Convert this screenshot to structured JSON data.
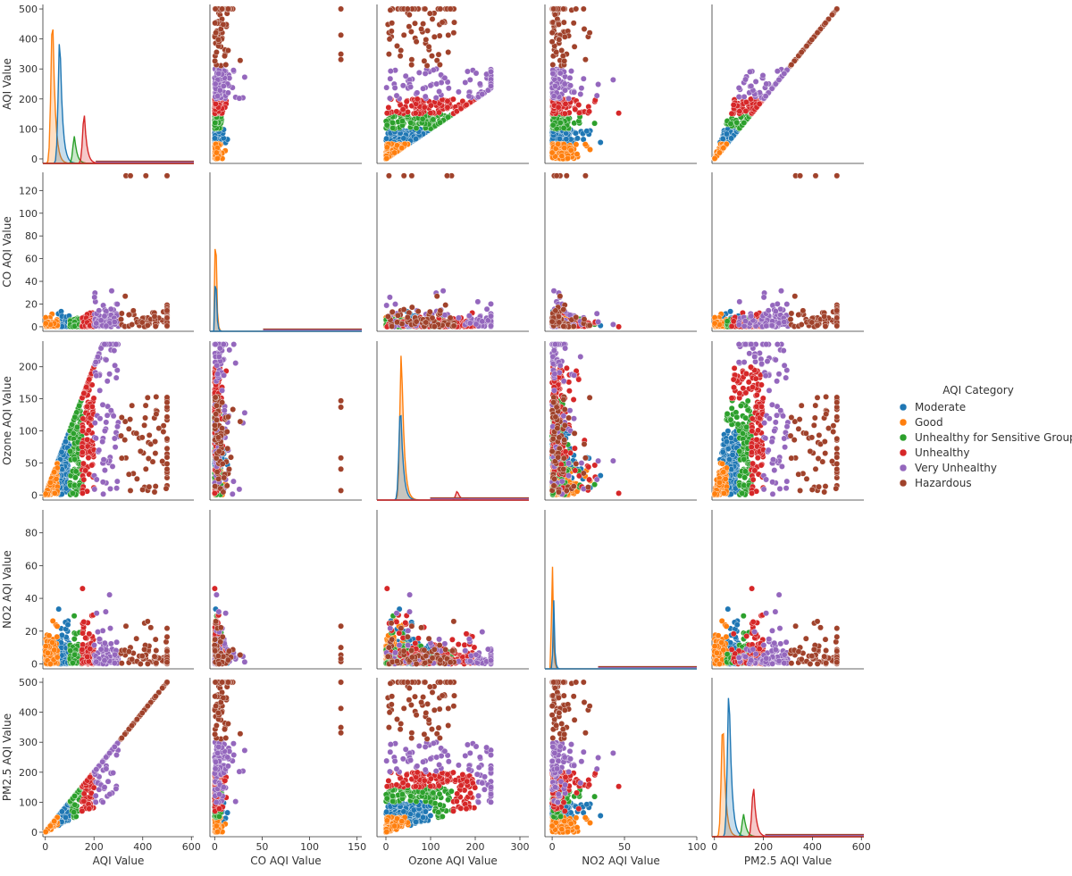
{
  "chart_data": {
    "type": "scatter",
    "kind": "pairplot",
    "hue_label": "AQI Category",
    "variables": [
      "AQI Value",
      "CO AQI Value",
      "Ozone AQI Value",
      "NO2 AQI Value",
      "PM2.5 AQI Value"
    ],
    "x_ranges": [
      [
        -10,
        610
      ],
      [
        -5,
        155
      ],
      [
        -20,
        320
      ],
      [
        -5,
        100
      ],
      [
        -10,
        610
      ]
    ],
    "y_ranges": [
      [
        -15,
        515
      ],
      [
        -4,
        136
      ],
      [
        -8,
        240
      ],
      [
        -3,
        94
      ],
      [
        -15,
        515
      ]
    ],
    "x_ticks": [
      [
        0,
        200,
        400,
        600
      ],
      [
        0,
        50,
        100,
        150
      ],
      [
        0,
        100,
        200,
        300
      ],
      [
        0,
        50,
        100
      ],
      [
        0,
        200,
        400,
        600
      ]
    ],
    "y_ticks": [
      [
        0,
        100,
        200,
        300,
        400,
        500
      ],
      [
        0,
        20,
        40,
        60,
        80,
        100,
        120
      ],
      [
        0,
        50,
        100,
        150,
        200
      ],
      [
        0,
        20,
        40,
        60,
        80
      ],
      [
        0,
        100,
        200,
        300,
        400,
        500
      ]
    ],
    "categories": [
      {
        "name": "Moderate",
        "color": "#1f77b4",
        "aqi_range": [
          51,
          100
        ]
      },
      {
        "name": "Good",
        "color": "#ff7f0e",
        "aqi_range": [
          0,
          50
        ]
      },
      {
        "name": "Unhealthy for Sensitive Groups",
        "color": "#2ca02c",
        "aqi_range": [
          101,
          150
        ]
      },
      {
        "name": "Unhealthy",
        "color": "#d62728",
        "aqi_range": [
          151,
          200
        ]
      },
      {
        "name": "Very Unhealthy",
        "color": "#9467bd",
        "aqi_range": [
          201,
          300
        ]
      },
      {
        "name": "Hazardous",
        "color": "#a0422b",
        "aqi_range": [
          301,
          500
        ]
      }
    ],
    "diagonal_peaks": [
      {
        "variable": "AQI Value",
        "peaks": [
          {
            "x": 30,
            "category": "Good"
          },
          {
            "x": 60,
            "category": "Moderate"
          },
          {
            "x": 120,
            "category": "Unhealthy for Sensitive Groups"
          },
          {
            "x": 160,
            "category": "Unhealthy"
          }
        ]
      },
      {
        "variable": "CO AQI Value",
        "peaks": [
          {
            "x": 1,
            "category": "Good"
          },
          {
            "x": 1,
            "category": "Moderate"
          }
        ]
      },
      {
        "variable": "Ozone AQI Value",
        "peaks": [
          {
            "x": 35,
            "category": "Good"
          },
          {
            "x": 33,
            "category": "Moderate"
          },
          {
            "x": 160,
            "category": "Unhealthy"
          }
        ]
      },
      {
        "variable": "NO2 AQI Value",
        "peaks": [
          {
            "x": 0,
            "category": "Good"
          },
          {
            "x": 1,
            "category": "Moderate"
          }
        ]
      },
      {
        "variable": "PM2.5 AQI Value",
        "peaks": [
          {
            "x": 35,
            "category": "Good"
          },
          {
            "x": 60,
            "category": "Moderate"
          },
          {
            "x": 120,
            "category": "Unhealthy for Sensitive Groups"
          },
          {
            "x": 160,
            "category": "Unhealthy"
          }
        ]
      }
    ]
  }
}
